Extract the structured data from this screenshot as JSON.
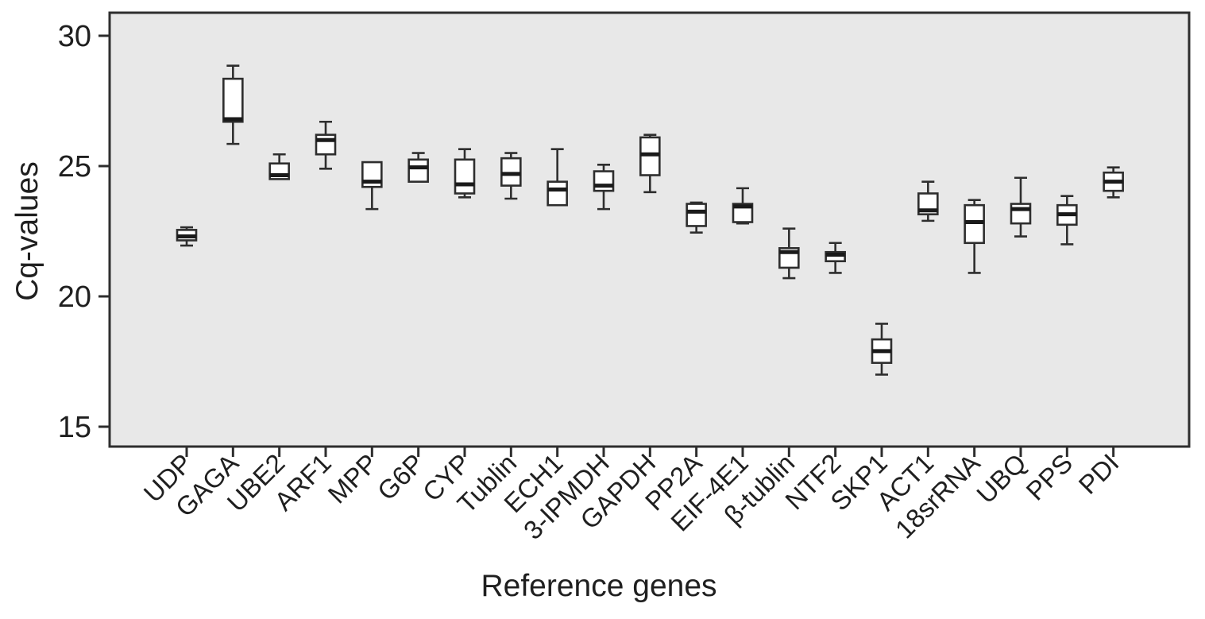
{
  "figure": {
    "y_axis_title": "Cq-values",
    "x_axis_title": "Reference genes"
  },
  "colors": {
    "page_background": "#ffffff",
    "plot_background": "#e8e8e8",
    "frame": "#2e2e2e",
    "box_fill": "#ffffff",
    "box_border": "#2e2e2e",
    "median": "#1a1a1a",
    "whisker": "#2e2e2e",
    "text": "#1f1f1f"
  },
  "chart_data": {
    "type": "boxplot",
    "title": "",
    "xlabel": "Reference genes",
    "ylabel": "Cq-values",
    "ylim": [
      14.2,
      30.9
    ],
    "y_ticks": [
      30,
      25,
      20,
      15
    ],
    "grid": false,
    "legend": false,
    "categories": [
      "UDP",
      "GAGA",
      "UBE2",
      "ARF1",
      "MPP",
      "G6P",
      "CYP",
      "Tublin",
      "ECH1",
      "3-IPMDH",
      "GAPDH",
      "PP2A",
      "EIF-4E1",
      "β-tublin",
      "NTF2",
      "SKP1",
      "ACT1",
      "18srRNA",
      "UBQ",
      "PPS",
      "PDI"
    ],
    "boxes": [
      {
        "gene": "UDP",
        "min": 21.95,
        "q1": 22.15,
        "median": 22.3,
        "q3": 22.55,
        "max": 22.65
      },
      {
        "gene": "GAGA",
        "min": 25.85,
        "q1": 26.7,
        "median": 26.8,
        "q3": 28.35,
        "max": 28.85
      },
      {
        "gene": "UBE2",
        "min": 24.5,
        "q1": 24.5,
        "median": 24.65,
        "q3": 25.1,
        "max": 25.45
      },
      {
        "gene": "ARF1",
        "min": 24.9,
        "q1": 25.45,
        "median": 26.0,
        "q3": 26.2,
        "max": 26.7
      },
      {
        "gene": "MPP",
        "min": 23.35,
        "q1": 24.2,
        "median": 24.4,
        "q3": 25.15,
        "max": 25.15
      },
      {
        "gene": "G6P",
        "min": 24.4,
        "q1": 24.4,
        "median": 24.95,
        "q3": 25.25,
        "max": 25.5
      },
      {
        "gene": "CYP",
        "min": 23.8,
        "q1": 23.95,
        "median": 24.3,
        "q3": 25.25,
        "max": 25.65
      },
      {
        "gene": "Tublin",
        "min": 23.75,
        "q1": 24.25,
        "median": 24.7,
        "q3": 25.3,
        "max": 25.5
      },
      {
        "gene": "ECH1",
        "min": 23.5,
        "q1": 23.5,
        "median": 24.1,
        "q3": 24.4,
        "max": 25.65
      },
      {
        "gene": "3-IPMDH",
        "min": 23.35,
        "q1": 24.05,
        "median": 24.25,
        "q3": 24.8,
        "max": 25.05
      },
      {
        "gene": "GAPDH",
        "min": 24.0,
        "q1": 24.65,
        "median": 25.45,
        "q3": 26.1,
        "max": 26.2
      },
      {
        "gene": "PP2A",
        "min": 22.45,
        "q1": 22.7,
        "median": 23.25,
        "q3": 23.55,
        "max": 23.6
      },
      {
        "gene": "EIF-4E1",
        "min": 22.8,
        "q1": 22.85,
        "median": 23.45,
        "q3": 23.55,
        "max": 24.15
      },
      {
        "gene": "β-tublin",
        "min": 20.7,
        "q1": 21.1,
        "median": 21.7,
        "q3": 21.85,
        "max": 22.6
      },
      {
        "gene": "NTF2",
        "min": 20.9,
        "q1": 21.35,
        "median": 21.6,
        "q3": 21.7,
        "max": 22.05
      },
      {
        "gene": "SKP1",
        "min": 17.0,
        "q1": 17.45,
        "median": 17.9,
        "q3": 18.35,
        "max": 18.95
      },
      {
        "gene": "ACT1",
        "min": 22.9,
        "q1": 23.15,
        "median": 23.3,
        "q3": 23.95,
        "max": 24.4
      },
      {
        "gene": "18srRNA",
        "min": 20.9,
        "q1": 22.05,
        "median": 22.85,
        "q3": 23.5,
        "max": 23.7
      },
      {
        "gene": "UBQ",
        "min": 22.3,
        "q1": 22.8,
        "median": 23.35,
        "q3": 23.55,
        "max": 24.55
      },
      {
        "gene": "PPS",
        "min": 22.0,
        "q1": 22.75,
        "median": 23.15,
        "q3": 23.5,
        "max": 23.85
      },
      {
        "gene": "PDI",
        "min": 23.8,
        "q1": 24.05,
        "median": 24.4,
        "q3": 24.75,
        "max": 24.95
      }
    ]
  }
}
